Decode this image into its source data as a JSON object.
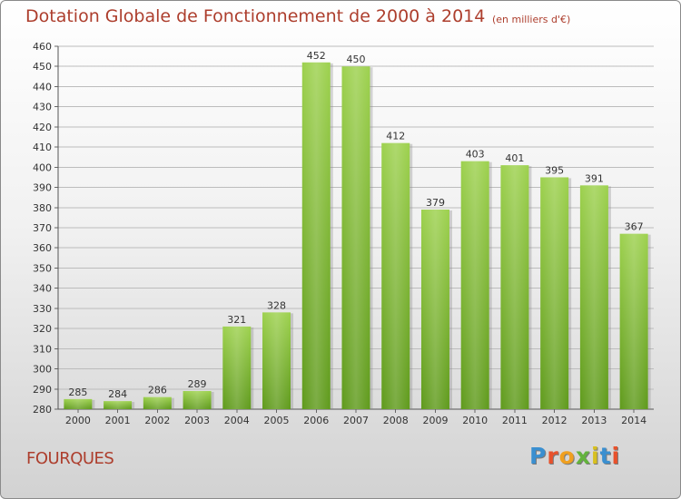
{
  "chart_data": {
    "type": "bar",
    "title": "Dotation Globale de Fonctionnement de 2000 à 2014",
    "subtitle": "(en milliers d'€)",
    "categories": [
      "2000",
      "2001",
      "2002",
      "2003",
      "2004",
      "2005",
      "2006",
      "2007",
      "2008",
      "2009",
      "2010",
      "2011",
      "2012",
      "2013",
      "2014"
    ],
    "values": [
      285,
      284,
      286,
      289,
      321,
      328,
      452,
      450,
      412,
      379,
      403,
      401,
      395,
      391,
      367
    ],
    "ylim": [
      280,
      460
    ],
    "yticks": [
      280,
      290,
      300,
      310,
      320,
      330,
      340,
      350,
      360,
      370,
      380,
      390,
      400,
      410,
      420,
      430,
      440,
      450,
      460
    ],
    "grid": true,
    "bar_color": "#7fba3a",
    "grid_color": "#bcbcbc"
  },
  "footer": {
    "place": "FOURQUES",
    "logo": "Proxiti",
    "logo_colors": [
      "#3a8fd0",
      "#e8522c",
      "#f0a020",
      "#63b33c",
      "#d8c020",
      "#3a8fd0",
      "#e8522c"
    ]
  }
}
